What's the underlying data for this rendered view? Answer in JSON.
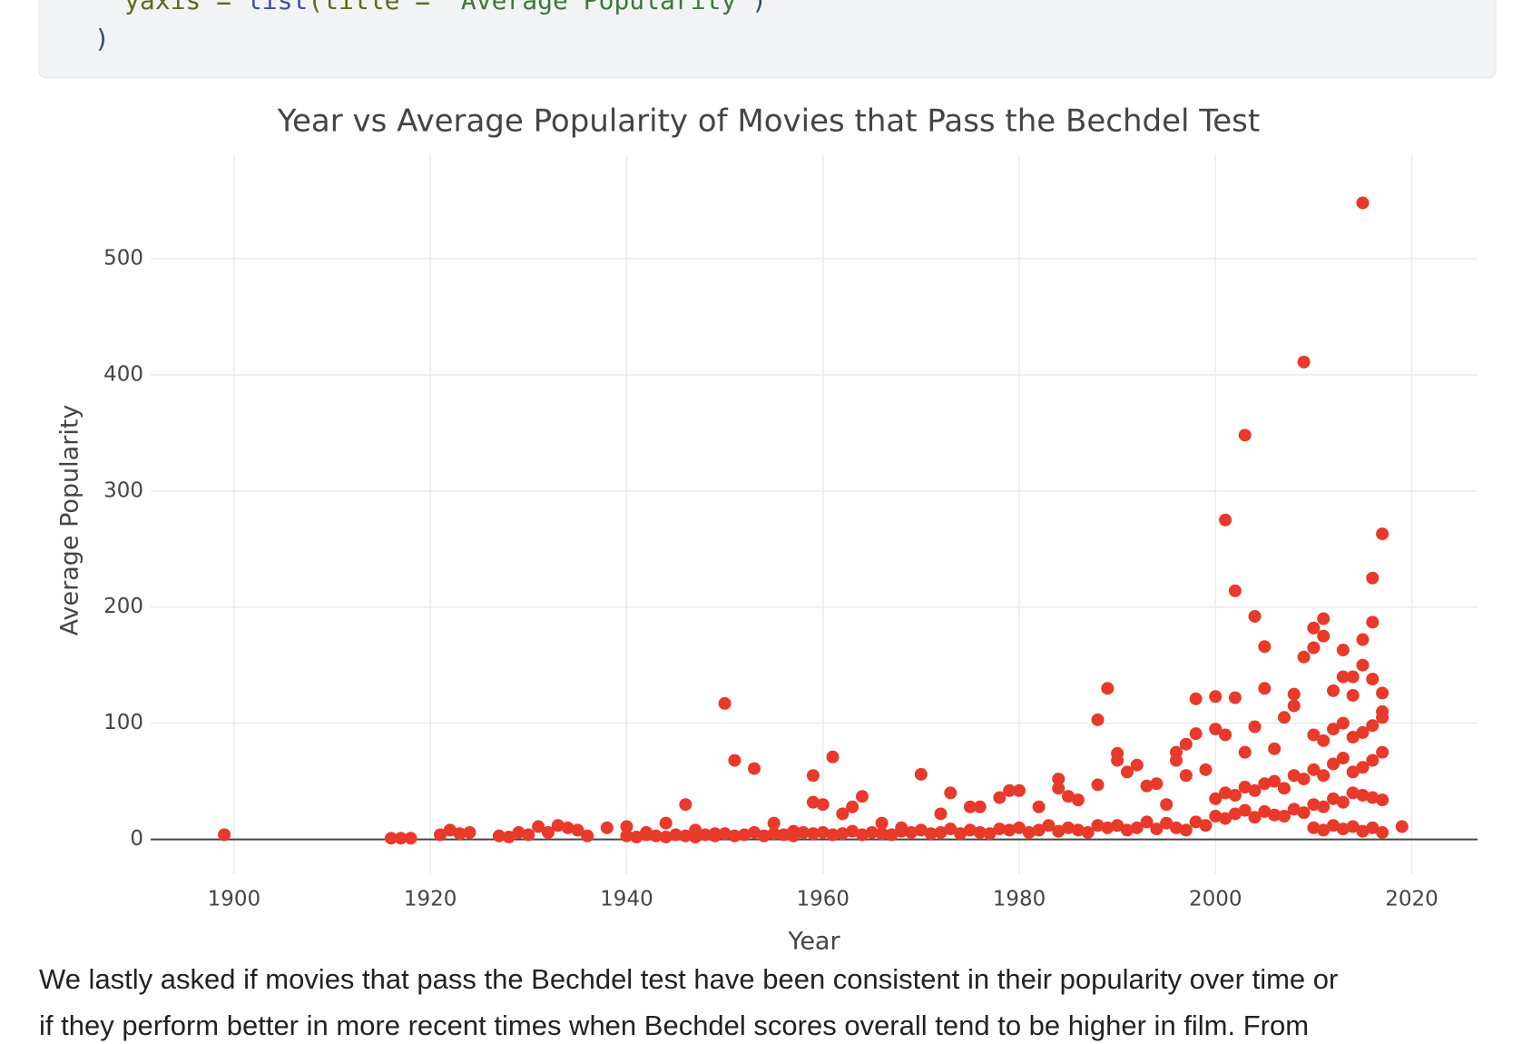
{
  "code": {
    "lines": [
      [
        "yaxis = ",
        "list",
        "(title = ",
        "\"Average Popularity\"",
        ")"
      ],
      [
        ")"
      ]
    ]
  },
  "chart_data": {
    "type": "scatter",
    "title": "Year vs Average Popularity of Movies that Pass the Bechdel Test",
    "x_label": "Year",
    "y_label": "Average Popularity",
    "color": "#e8392a",
    "grid": true,
    "zeroline": true,
    "xlim": [
      1891.5,
      2026.7
    ],
    "ylim": [
      -30,
      589
    ],
    "xticks": [
      1900,
      1920,
      1940,
      1960,
      1980,
      2000,
      2020
    ],
    "yticks": [
      0,
      100,
      200,
      300,
      400,
      500
    ],
    "x": [
      1899,
      1916,
      1917,
      1918,
      1921,
      1922,
      1923,
      1924,
      1927,
      1928,
      1929,
      1930,
      1931,
      1932,
      1933,
      1934,
      1935,
      1936,
      1938,
      1940,
      1942,
      1944,
      1946,
      1947,
      1949,
      1950,
      1951,
      1953,
      1955,
      1957,
      1959,
      1959,
      1960,
      1961,
      1962,
      1963,
      1964,
      1966,
      1968,
      1970,
      1972,
      1973,
      1975,
      1976,
      1978,
      1979,
      1980,
      1982,
      1984,
      1984,
      1985,
      1986,
      1988,
      1988,
      1989,
      1990,
      1990,
      1991,
      1992,
      1993,
      1994,
      1995,
      1996,
      1996,
      1997,
      1997,
      1998,
      1998,
      1999,
      2000,
      2000,
      2001,
      2001,
      2002,
      2002,
      2003,
      2003,
      2004,
      2004,
      2005,
      2005,
      2006,
      2007,
      2008,
      2008,
      2009,
      2009,
      2010,
      2010,
      2011,
      2011,
      2012,
      2013,
      2013,
      2014,
      2014,
      2015,
      2015,
      2015,
      2016,
      2016,
      2016,
      2017,
      2017,
      2017,
      2019,
      1940,
      1941,
      1942,
      1943,
      1944,
      1945,
      1946,
      1947,
      1948,
      1949,
      1950,
      1951,
      1952,
      1953,
      1954,
      1955,
      1956,
      1957,
      1958,
      1959,
      1960,
      1961,
      1962,
      1963,
      1964,
      1965,
      1966,
      1967,
      1968,
      1969,
      1970,
      1971,
      1972,
      1973,
      1974,
      1975,
      1976,
      1977,
      1978,
      1979,
      1980,
      1981,
      1982,
      1983,
      1984,
      1985,
      1986,
      1987,
      1988,
      1989,
      1990,
      1991,
      1992,
      1993,
      1994,
      1995,
      1996,
      1997,
      1998,
      1999,
      2000,
      2001,
      2002,
      2003,
      2004,
      2005,
      2006,
      2007,
      2008,
      2009,
      2000,
      2001,
      2002,
      2003,
      2004,
      2005,
      2006,
      2007,
      2008,
      2009,
      2010,
      2011,
      2012,
      2013,
      2014,
      2015,
      2016,
      2017,
      2010,
      2011,
      2012,
      2013,
      2014,
      2015,
      2016,
      2017,
      2010,
      2011,
      2012,
      2013,
      2014,
      2015,
      2016,
      2017,
      2010,
      2011,
      2012,
      2013,
      2014,
      2015,
      2016,
      2017
    ],
    "values": [
      4,
      1,
      1,
      1,
      4,
      8,
      5,
      6,
      3,
      2,
      6,
      4,
      11,
      6,
      12,
      10,
      8,
      3,
      10,
      11,
      6,
      14,
      30,
      8,
      5,
      117,
      68,
      61,
      14,
      7,
      55,
      32,
      30,
      71,
      22,
      28,
      37,
      14,
      10,
      56,
      22,
      40,
      28,
      28,
      36,
      42,
      42,
      28,
      52,
      44,
      37,
      34,
      103,
      47,
      130,
      74,
      68,
      58,
      64,
      46,
      48,
      30,
      75,
      68,
      82,
      55,
      91,
      121,
      60,
      123,
      95,
      275,
      90,
      214,
      122,
      348,
      75,
      192,
      97,
      166,
      130,
      78,
      105,
      125,
      115,
      411,
      157,
      182,
      165,
      190,
      175,
      128,
      163,
      140,
      140,
      124,
      548,
      172,
      150,
      225,
      187,
      138,
      263,
      126,
      110,
      11,
      3,
      2,
      4,
      3,
      2,
      4,
      3,
      2,
      4,
      3,
      5,
      3,
      4,
      6,
      3,
      5,
      4,
      3,
      6,
      5,
      6,
      4,
      5,
      7,
      4,
      6,
      5,
      4,
      7,
      6,
      8,
      5,
      6,
      9,
      5,
      8,
      6,
      5,
      9,
      8,
      10,
      6,
      8,
      12,
      7,
      10,
      8,
      6,
      12,
      10,
      12,
      8,
      10,
      15,
      9,
      14,
      10,
      8,
      15,
      12,
      20,
      18,
      22,
      25,
      19,
      24,
      21,
      20,
      26,
      23,
      35,
      40,
      38,
      45,
      42,
      48,
      50,
      44,
      55,
      52,
      30,
      28,
      35,
      32,
      40,
      38,
      36,
      34,
      60,
      55,
      65,
      70,
      58,
      62,
      68,
      75,
      90,
      85,
      95,
      100,
      88,
      92,
      98,
      105,
      10,
      8,
      12,
      9,
      11,
      7,
      10,
      6
    ]
  },
  "paragraph": {
    "lines": [
      "We lastly asked if movies that pass the Bechdel test have been consistent in their popularity over time or",
      "if they perform better in more recent times when Bechdel scores overall tend to be higher in film. From"
    ]
  }
}
